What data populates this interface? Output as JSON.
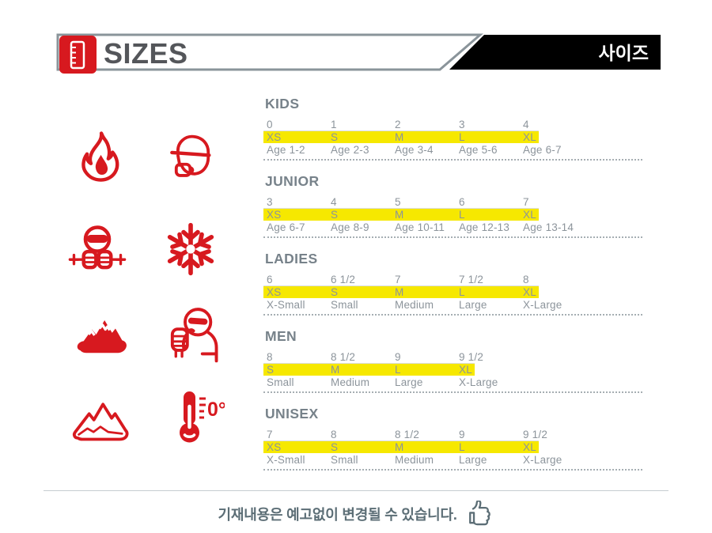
{
  "header": {
    "title": "SIZES",
    "title_korean": "사이즈",
    "colors": {
      "red_accent": "#d7191f",
      "border_gray": "#8a949a",
      "black_bar": "#000000",
      "title_text": "#54565a"
    }
  },
  "icons": {
    "list": [
      "ruler-icon",
      "flame-icon",
      "balaclava-hand-icon",
      "skier-icon",
      "snowflake-icon",
      "mountains-solid-icon",
      "thumbs-up-person-icon",
      "mountains-outline-icon",
      "thermometer-icon",
      "thumbs-up-icon"
    ],
    "thermometer_label": "0°",
    "color": "#d7191f"
  },
  "size_chart": {
    "highlight_color": "#f6e800",
    "text_color": "#8c949b",
    "heading_color": "#77828a",
    "sections": [
      {
        "title": "KIDS",
        "numbers": [
          "0",
          "1",
          "2",
          "3",
          "4"
        ],
        "sizes": [
          "XS",
          "S",
          "M",
          "L",
          "XL"
        ],
        "labels": [
          "Age 1-2",
          "Age 2-3",
          "Age 3-4",
          "Age 5-6",
          "Age 6-7"
        ]
      },
      {
        "title": "JUNIOR",
        "numbers": [
          "3",
          "4",
          "5",
          "6",
          "7"
        ],
        "sizes": [
          "XS",
          "S",
          "M",
          "L",
          "XL"
        ],
        "labels": [
          "Age 6-7",
          "Age 8-9",
          "Age 10-11",
          "Age 12-13",
          "Age 13-14"
        ]
      },
      {
        "title": "LADIES",
        "numbers": [
          "6",
          "6 1/2",
          "7",
          "7 1/2",
          "8"
        ],
        "sizes": [
          "XS",
          "S",
          "M",
          "L",
          "XL"
        ],
        "labels": [
          "X-Small",
          "Small",
          "Medium",
          "Large",
          "X-Large"
        ]
      },
      {
        "title": "MEN",
        "numbers": [
          "8",
          "8 1/2",
          "9",
          "9 1/2"
        ],
        "sizes": [
          "S",
          "M",
          "L",
          "XL"
        ],
        "labels": [
          "Small",
          "Medium",
          "Large",
          "X-Large"
        ]
      },
      {
        "title": "UNISEX",
        "numbers": [
          "7",
          "8",
          "8 1/2",
          "9",
          "9 1/2"
        ],
        "sizes": [
          "XS",
          "S",
          "M",
          "L",
          "XL"
        ],
        "labels": [
          "X-Small",
          "Small",
          "Medium",
          "Large",
          "X-Large"
        ]
      }
    ]
  },
  "footer": {
    "notice": "기재내용은 예고없이 변경될 수 있습니다."
  }
}
